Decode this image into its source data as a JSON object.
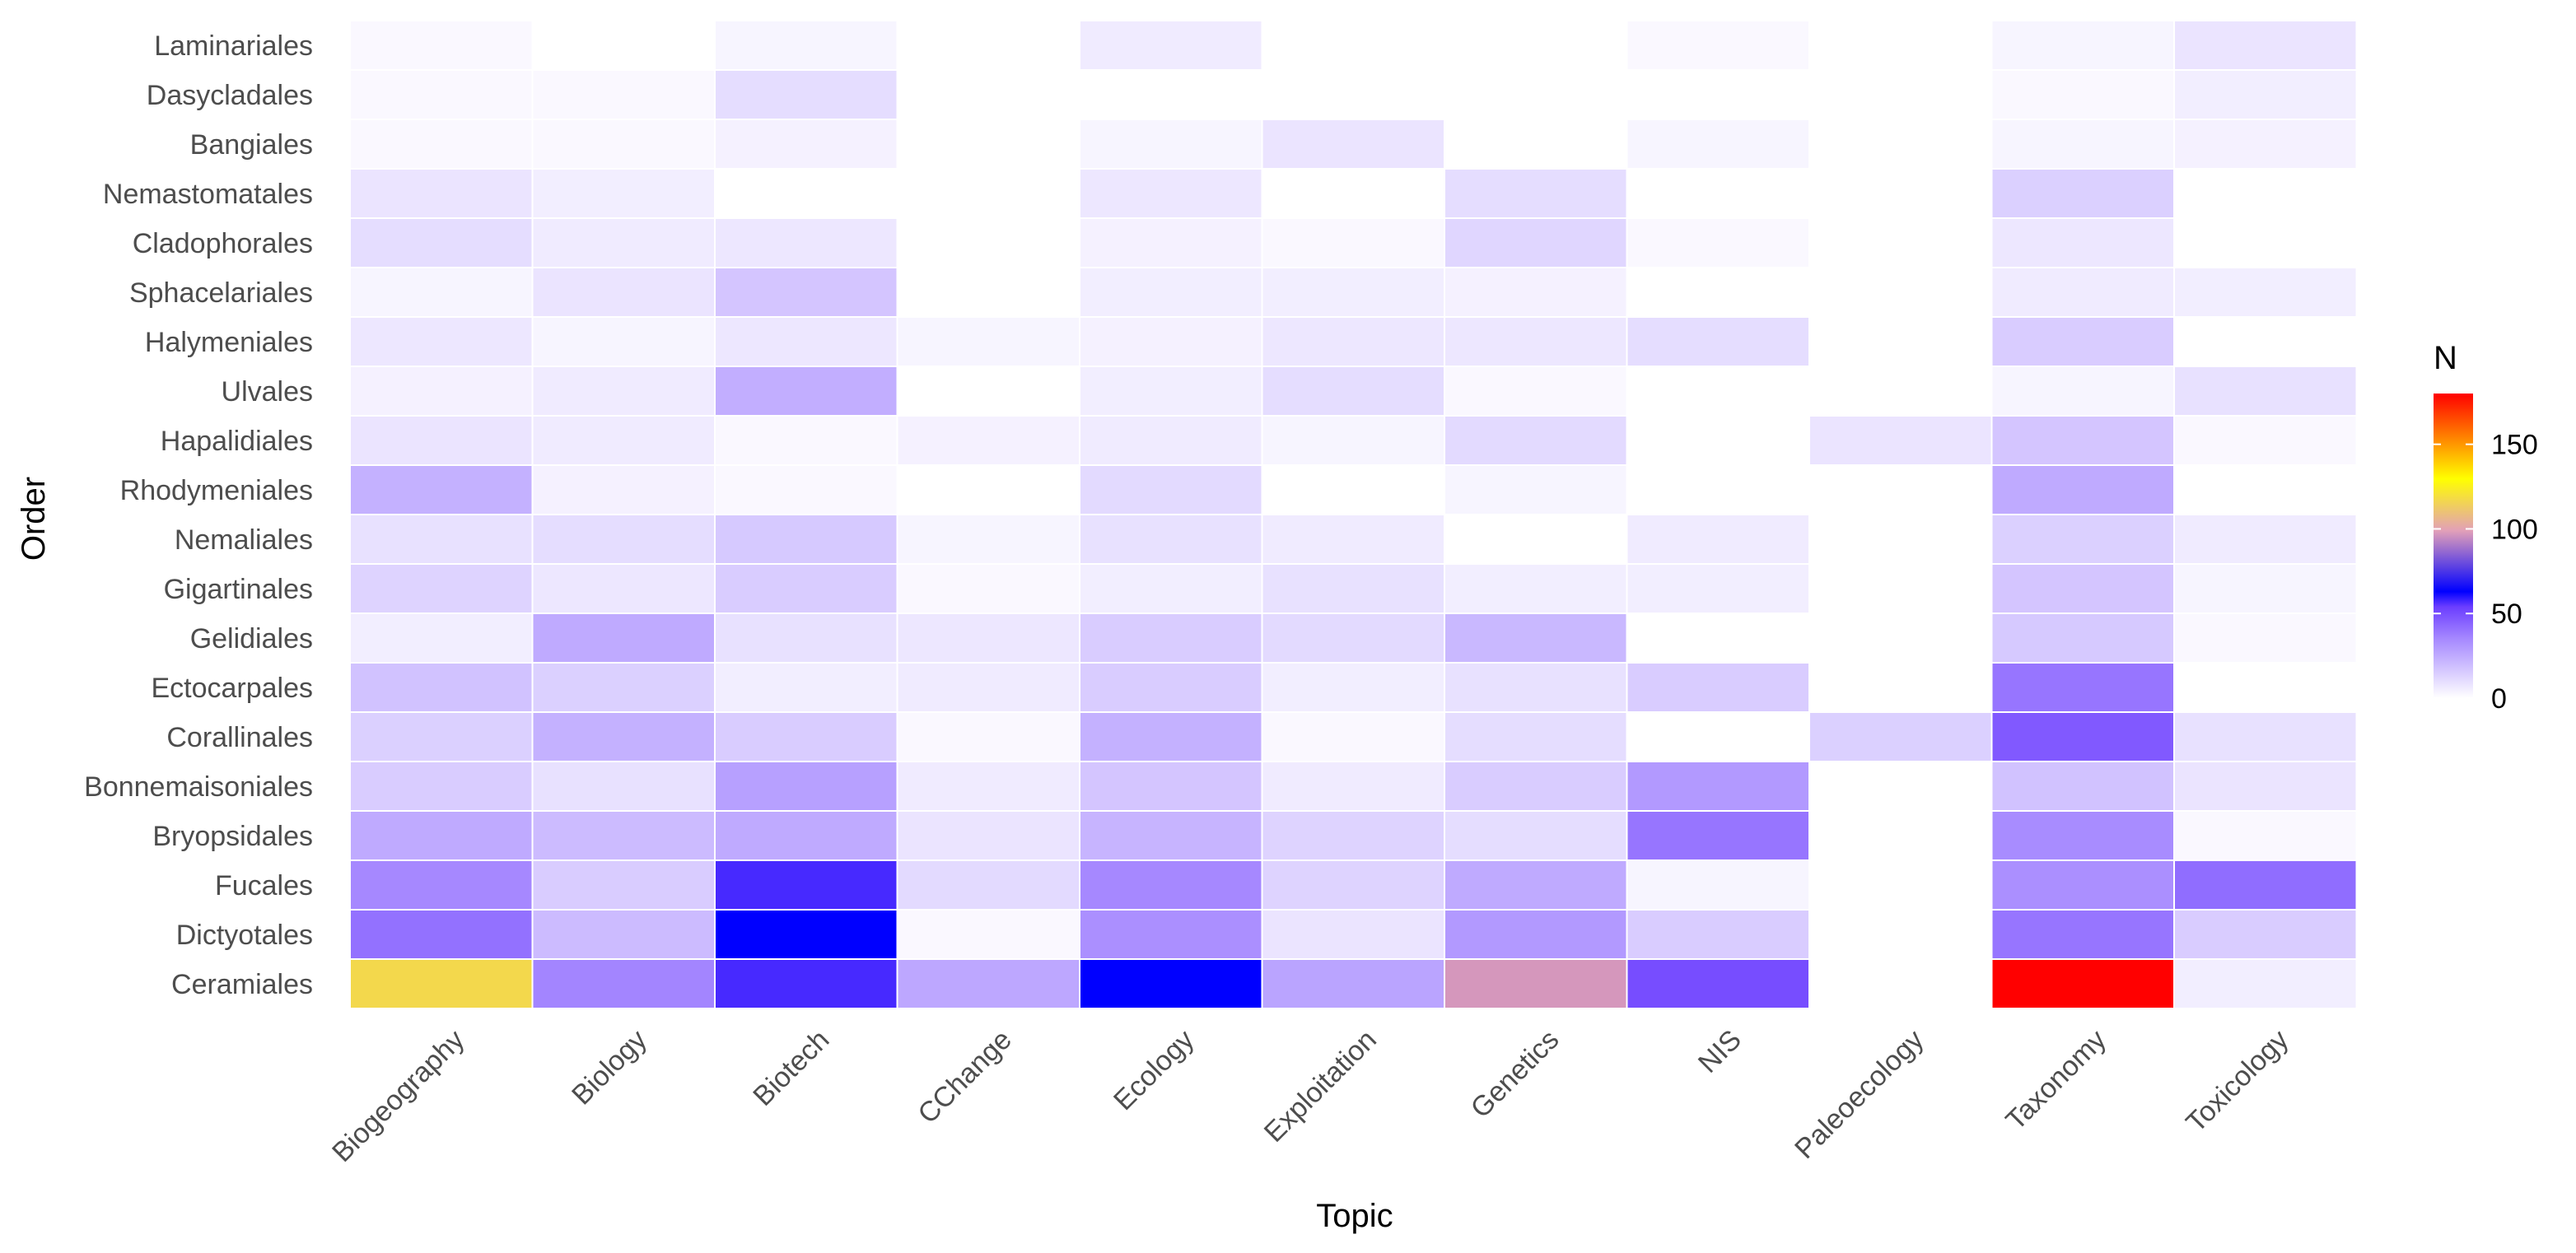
{
  "chart_data": {
    "type": "heatmap",
    "xlabel": "Topic",
    "ylabel": "Order",
    "x_categories": [
      "Biogeography",
      "Biology",
      "Biotech",
      "CChange",
      "Ecology",
      "Exploitation",
      "Genetics",
      "NIS",
      "Paleoecology",
      "Taxonomy",
      "Toxicology"
    ],
    "y_categories": [
      "Ceramiales",
      "Dictyotales",
      "Fucales",
      "Bryopsidales",
      "Bonnemaisoniales",
      "Corallinales",
      "Ectocarpales",
      "Gelidiales",
      "Gigartinales",
      "Nemaliales",
      "Rhodymeniales",
      "Hapalidiales",
      "Ulvales",
      "Halymeniales",
      "Sphacelariales",
      "Cladophorales",
      "Nemastomatales",
      "Bangiales",
      "Dasycladales",
      "Laminariales"
    ],
    "values": [
      [
        117,
        36,
        57,
        26,
        63,
        27,
        97,
        50,
        null,
        180,
        5
      ],
      [
        41,
        20,
        63,
        2,
        33,
        8,
        30,
        15,
        null,
        40,
        15
      ],
      [
        35,
        15,
        57,
        11,
        35,
        13,
        25,
        3,
        null,
        33,
        42
      ],
      [
        25,
        20,
        25,
        8,
        22,
        13,
        10,
        40,
        null,
        34,
        2
      ],
      [
        15,
        9,
        28,
        6,
        17,
        6,
        15,
        30,
        null,
        18,
        8
      ],
      [
        14,
        23,
        15,
        2,
        23,
        2,
        10,
        null,
        14,
        47,
        9
      ],
      [
        18,
        14,
        5,
        6,
        15,
        5,
        9,
        15,
        null,
        40,
        null
      ],
      [
        5,
        25,
        9,
        7,
        15,
        11,
        21,
        null,
        null,
        16,
        2
      ],
      [
        13,
        7,
        15,
        2,
        5,
        9,
        5,
        5,
        null,
        17,
        3
      ],
      [
        9,
        10,
        16,
        3,
        9,
        6,
        null,
        6,
        null,
        14,
        6
      ],
      [
        23,
        4,
        2,
        null,
        11,
        null,
        3,
        null,
        null,
        25,
        null
      ],
      [
        8,
        6,
        2,
        4,
        6,
        3,
        11,
        null,
        8,
        17,
        2
      ],
      [
        4,
        6,
        24,
        null,
        5,
        10,
        2,
        null,
        null,
        3,
        9
      ],
      [
        7,
        3,
        7,
        3,
        4,
        7,
        7,
        10,
        null,
        15,
        null
      ],
      [
        3,
        8,
        17,
        null,
        5,
        5,
        4,
        null,
        null,
        6,
        5
      ],
      [
        10,
        6,
        7,
        null,
        4,
        2,
        12,
        2,
        null,
        7,
        null
      ],
      [
        8,
        5,
        null,
        null,
        7,
        null,
        10,
        null,
        null,
        14,
        null
      ],
      [
        2,
        2,
        4,
        null,
        3,
        8,
        null,
        3,
        null,
        3,
        4
      ],
      [
        2,
        2,
        10,
        null,
        null,
        null,
        null,
        null,
        null,
        2,
        5
      ],
      [
        2,
        null,
        3,
        null,
        6,
        null,
        null,
        2,
        null,
        3,
        8
      ]
    ],
    "legend": {
      "title": "N",
      "ticks": [
        0,
        50,
        100,
        150
      ],
      "limits": [
        0,
        180
      ]
    },
    "colors": {
      "scale": [
        "#ffffff",
        "#a385ff",
        "#6b3dff",
        "#0000ff",
        "#e2a0b8",
        "#ffff00",
        "#ff8800",
        "#ff0000"
      ],
      "scale_stops": [
        0,
        0.2,
        0.3,
        0.35,
        0.55,
        0.72,
        0.85,
        1
      ],
      "tile_border": "#ffffff"
    },
    "grid": false,
    "legend_position": "right"
  }
}
